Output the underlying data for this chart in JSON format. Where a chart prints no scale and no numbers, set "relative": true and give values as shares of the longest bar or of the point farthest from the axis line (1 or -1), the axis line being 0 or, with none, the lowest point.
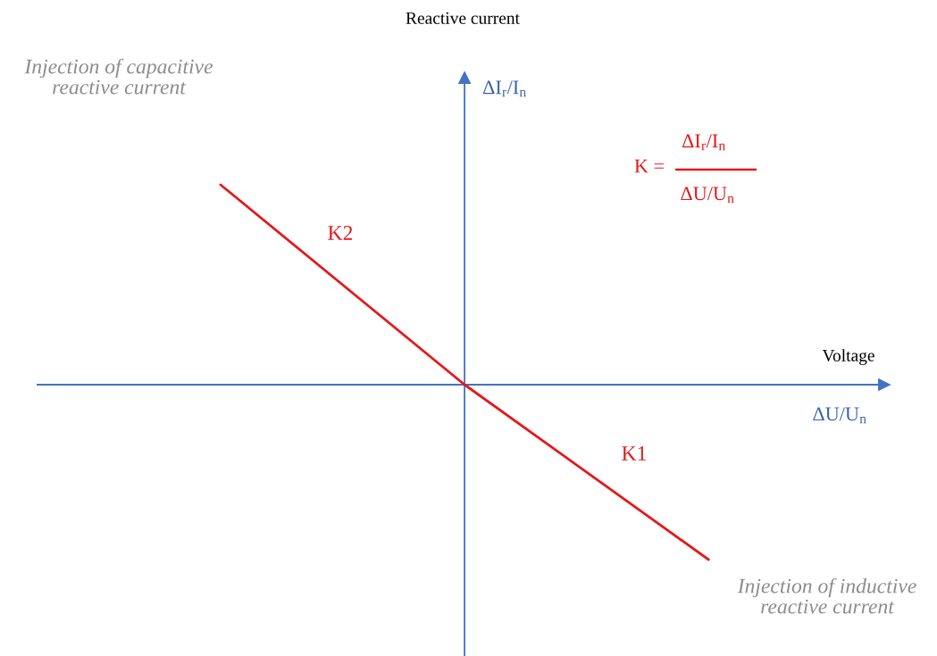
{
  "chart_data": {
    "type": "line",
    "relative": true,
    "xlabel": "Voltage",
    "categories": [
      null,
      null,
      null
    ],
    "series": [
      {
        "color": "#e3191c",
        "values": [
          1,
          0,
          -0.875
        ]
      }
    ],
    "ref_lines": [
      {
        "axis": "y",
        "value": 0,
        "color": "#4472c4"
      }
    ],
    "annotations": [
      "Reactive current",
      "ΔI$_{r}$/I$_{n}$",
      "ΔU/U$_{n}$",
      "K =",
      "ΔI$_{r}$/I$_{n}$",
      "ΔU/U$_{n}$",
      "Injection of capacitive\nreactive current",
      "Injection of inductive\nreactive current",
      "K2",
      "K1"
    ],
    "grid": false,
    "line_style": "solid"
  }
}
